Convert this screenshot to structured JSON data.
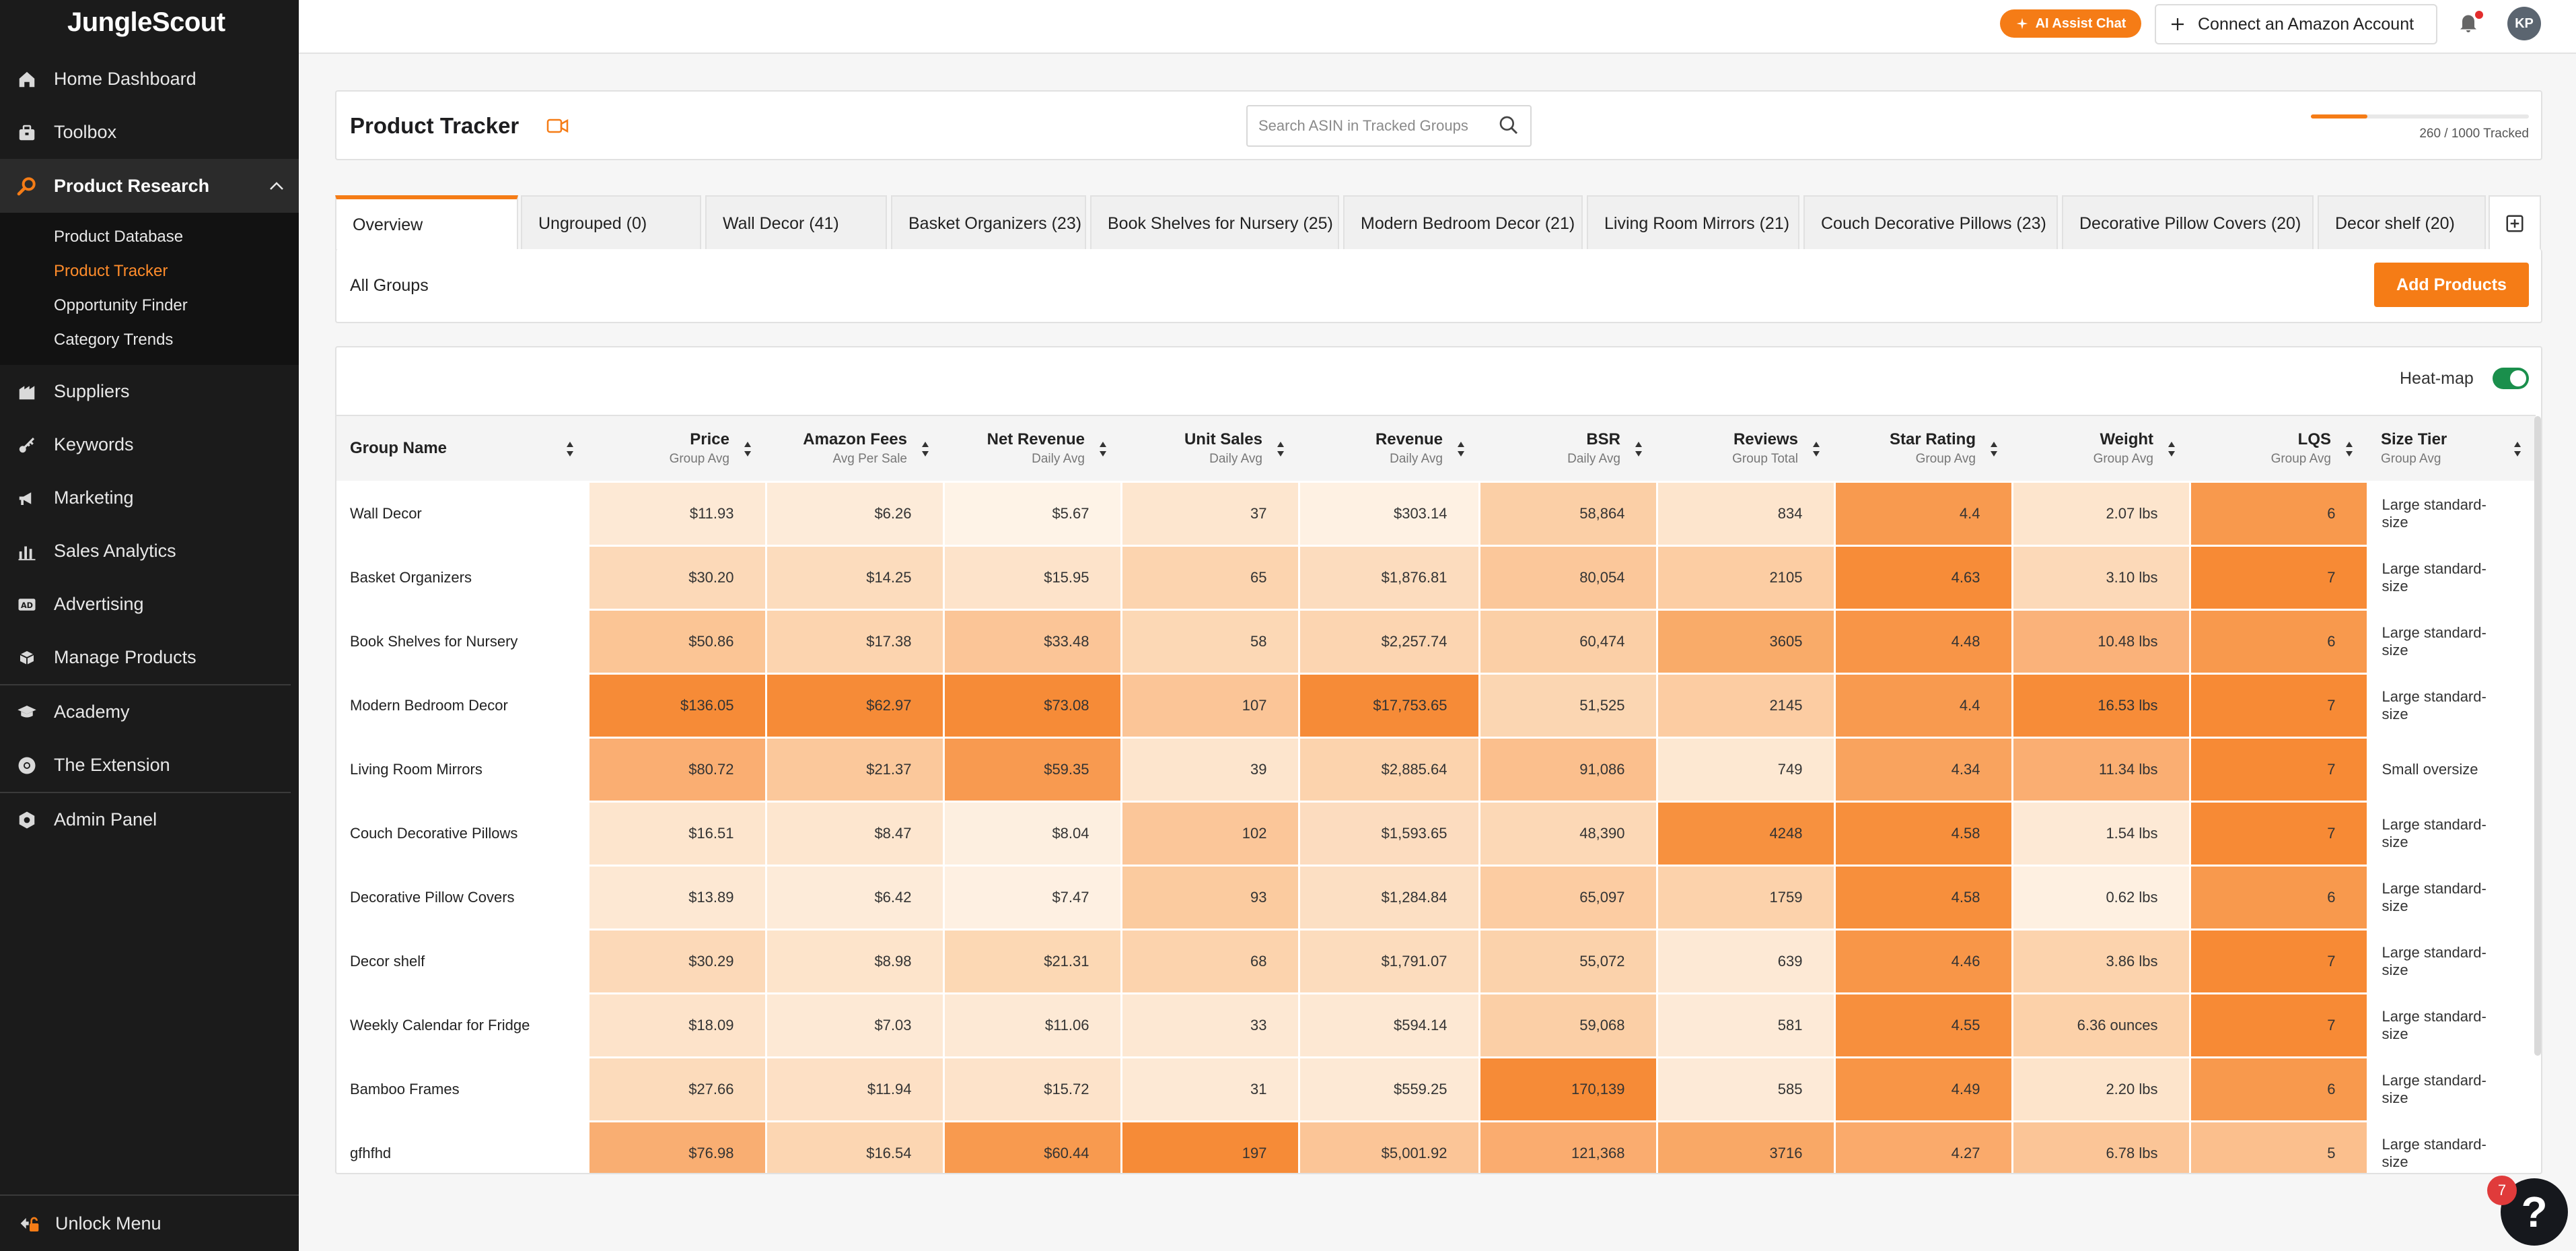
{
  "app": {
    "logo": "JungleScout"
  },
  "sidebar": {
    "items_top": [
      {
        "label": "Home Dashboard",
        "icon": "home-icon"
      },
      {
        "label": "Toolbox",
        "icon": "toolbox-icon"
      }
    ],
    "open_section": {
      "label": "Product Research",
      "icon": "product-research-icon",
      "subitems": [
        {
          "label": "Product Database",
          "active": false
        },
        {
          "label": "Product Tracker",
          "active": true
        },
        {
          "label": "Opportunity Finder",
          "active": false
        },
        {
          "label": "Category Trends",
          "active": false
        }
      ]
    },
    "items_bottom": [
      {
        "label": "Suppliers",
        "icon": "suppliers-icon"
      },
      {
        "label": "Keywords",
        "icon": "keywords-icon"
      },
      {
        "label": "Marketing",
        "icon": "marketing-icon"
      },
      {
        "label": "Sales Analytics",
        "icon": "sales-analytics-icon"
      },
      {
        "label": "Advertising",
        "icon": "advertising-icon"
      },
      {
        "label": "Manage Products",
        "icon": "manage-products-icon"
      },
      {
        "label": "Academy",
        "icon": "academy-icon"
      },
      {
        "label": "The Extension",
        "icon": "extension-icon"
      },
      {
        "label": "Admin Panel",
        "icon": "admin-panel-icon"
      }
    ],
    "unlock_label": "Unlock Menu"
  },
  "topbar": {
    "ai_chat_label": "AI Assist Chat",
    "connect_label": "Connect an Amazon Account",
    "avatar_initials": "KP"
  },
  "header": {
    "title": "Product Tracker",
    "search_placeholder": "Search ASIN in Tracked Groups",
    "tracked_text": "260 / 1000 Tracked",
    "tracked_fraction": 0.26
  },
  "tabs": [
    {
      "label": "Overview",
      "active": true
    },
    {
      "label": "Ungrouped (0)"
    },
    {
      "label": "Wall Decor (41)"
    },
    {
      "label": "Basket Organizers (23)"
    },
    {
      "label": "Book Shelves for Nursery (25)"
    },
    {
      "label": "Modern Bedroom Decor (21)"
    },
    {
      "label": "Living Room Mirrors (21)"
    },
    {
      "label": "Couch Decorative Pillows (23)"
    },
    {
      "label": "Decorative Pillow Covers (20)"
    },
    {
      "label": "Decor shelf (20)"
    }
  ],
  "group_bar": {
    "label": "All Groups",
    "add_button": "Add Products"
  },
  "table": {
    "heatmap_label": "Heat-map",
    "heatmap_on": true,
    "columns": [
      {
        "title": "Group Name",
        "sub": ""
      },
      {
        "title": "Price",
        "sub": "Group Avg"
      },
      {
        "title": "Amazon Fees",
        "sub": "Avg Per Sale"
      },
      {
        "title": "Net Revenue",
        "sub": "Daily Avg"
      },
      {
        "title": "Unit Sales",
        "sub": "Daily Avg"
      },
      {
        "title": "Revenue",
        "sub": "Daily Avg"
      },
      {
        "title": "BSR",
        "sub": "Daily Avg"
      },
      {
        "title": "Reviews",
        "sub": "Group Total"
      },
      {
        "title": "Star Rating",
        "sub": "Group Avg"
      },
      {
        "title": "Weight",
        "sub": "Group Avg"
      },
      {
        "title": "LQS",
        "sub": "Group Avg"
      },
      {
        "title": "Size Tier",
        "sub": "Group Avg"
      }
    ],
    "rows": [
      {
        "cells": [
          "Wall Decor",
          "$11.93",
          "$6.26",
          "$5.67",
          "37",
          "$303.14",
          "58,864",
          "834",
          "4.4",
          "2.07 lbs",
          "6",
          "Large standard-size"
        ],
        "heat": [
          "",
          "#fde9d5",
          "#fdebd9",
          "#fef3e7",
          "#fde6cf",
          "#fef1e3",
          "#fbcfa6",
          "#fde5cd",
          "#f89a4f",
          "#fde5cd",
          "#f8994d",
          ""
        ]
      },
      {
        "cells": [
          "Basket Organizers",
          "$30.20",
          "$14.25",
          "$15.95",
          "65",
          "$1,876.81",
          "80,054",
          "2105",
          "4.63",
          "3.10 lbs",
          "7",
          "Large standard-size"
        ],
        "heat": [
          "",
          "#fcd9b8",
          "#fcdcbd",
          "#fde3ca",
          "#fcd4af",
          "#fcdcbe",
          "#fbc79a",
          "#fccda3",
          "#f78c38",
          "#fcd9b8",
          "#f78a35",
          ""
        ]
      },
      {
        "cells": [
          "Book Shelves for Nursery",
          "$50.86",
          "$17.38",
          "$33.48",
          "58",
          "$2,257.74",
          "60,474",
          "3605",
          "4.48",
          "10.48 lbs",
          "6",
          "Large standard-size"
        ],
        "heat": [
          "",
          "#fbc595",
          "#fcd4af",
          "#fbc597",
          "#fcd8b5",
          "#fcd5b1",
          "#fbcfa6",
          "#f9ab69",
          "#f89547",
          "#fab27a",
          "#f8994d",
          ""
        ]
      },
      {
        "cells": [
          "Modern Bedroom Decor",
          "$136.05",
          "$62.97",
          "$73.08",
          "107",
          "$17,753.65",
          "51,525",
          "2145",
          "4.4",
          "16.53 lbs",
          "7",
          "Large standard-size"
        ],
        "heat": [
          "",
          "#f68b37",
          "#f68b37",
          "#f68b37",
          "#fbc597",
          "#f68b37",
          "#fbd6b2",
          "#fccca2",
          "#f89a4f",
          "#f78c38",
          "#f78a35",
          ""
        ]
      },
      {
        "cells": [
          "Living Room Mirrors",
          "$80.72",
          "$21.37",
          "$59.35",
          "39",
          "$2,885.64",
          "91,086",
          "749",
          "4.34",
          "11.34 lbs",
          "7",
          "Small oversize"
        ],
        "heat": [
          "",
          "#faae72",
          "#fbc89b",
          "#f89a50",
          "#fde5cd",
          "#fcd3ad",
          "#fbbf8d",
          "#fde8d2",
          "#f9a35e",
          "#faae72",
          "#f78a35",
          ""
        ]
      },
      {
        "cells": [
          "Couch Decorative Pillows",
          "$16.51",
          "$8.47",
          "$8.04",
          "102",
          "$1,593.65",
          "48,390",
          "4248",
          "4.58",
          "1.54 lbs",
          "7",
          "Large standard-size"
        ],
        "heat": [
          "",
          "#fde5cd",
          "#fde6cf",
          "#fdefe0",
          "#fbc699",
          "#fcdcbf",
          "#fcd8b6",
          "#f7913f",
          "#f78f3c",
          "#fde9d5",
          "#f78a35",
          ""
        ]
      },
      {
        "cells": [
          "Decorative Pillow Covers",
          "$13.89",
          "$6.42",
          "$7.47",
          "93",
          "$1,284.84",
          "65,097",
          "1759",
          "4.58",
          "0.62 lbs",
          "6",
          "Large standard-size"
        ],
        "heat": [
          "",
          "#fde8d3",
          "#fdebd9",
          "#fef0e2",
          "#fbcb9f",
          "#fcdfc3",
          "#fcccA2",
          "#fcd2ab",
          "#f78f3c",
          "#fef0e1",
          "#f8994d",
          ""
        ]
      },
      {
        "cells": [
          "Decor shelf",
          "$30.29",
          "$8.98",
          "$21.31",
          "68",
          "$1,791.07",
          "55,072",
          "639",
          "4.46",
          "3.86 lbs",
          "7",
          "Large standard-size"
        ],
        "heat": [
          "",
          "#fcd9b8",
          "#fde4cb",
          "#fcd8b4",
          "#fcd3ad",
          "#fcdcbd",
          "#fbd2ab",
          "#fde9d5",
          "#f89648",
          "#fcd3ad",
          "#f78a35",
          ""
        ]
      },
      {
        "cells": [
          "Weekly Calendar for Fridge",
          "$18.09",
          "$7.03",
          "$11.06",
          "33",
          "$594.14",
          "59,068",
          "581",
          "4.55",
          "6.36 ounces",
          "7",
          "Large standard-size"
        ],
        "heat": [
          "",
          "#fde3ca",
          "#fde9d5",
          "#fde9d5",
          "#fde8d3",
          "#fde8d3",
          "#fbcfa6",
          "#fdead7",
          "#f78f3d",
          "#fcd1a9",
          "#f78a35",
          ""
        ]
      },
      {
        "cells": [
          "Bamboo Frames",
          "$27.66",
          "$11.94",
          "$15.72",
          "31",
          "$559.25",
          "170,139",
          "585",
          "4.49",
          "2.20 lbs",
          "6",
          "Large standard-size"
        ],
        "heat": [
          "",
          "#fcdbbb",
          "#fde0c5",
          "#fde3ca",
          "#fde9d5",
          "#fde9d5",
          "#f68b37",
          "#fdead7",
          "#f89546",
          "#fde4cb",
          "#f8994d",
          ""
        ]
      },
      {
        "cells": [
          "gfhfhd",
          "$76.98",
          "$16.54",
          "$60.44",
          "197",
          "$5,001.92",
          "121,368",
          "3716",
          "4.27",
          "6.78 lbs",
          "5",
          "Large standard-size"
        ],
        "heat": [
          "",
          "#f9ae72",
          "#fcd6b2",
          "#f89a4f",
          "#f68b37",
          "#fbc597",
          "#faac6f",
          "#f9a866",
          "#faaa6b",
          "#fbc597",
          "#fbbf8d",
          ""
        ]
      }
    ]
  },
  "help": {
    "badge": "7",
    "glyph": "?"
  }
}
